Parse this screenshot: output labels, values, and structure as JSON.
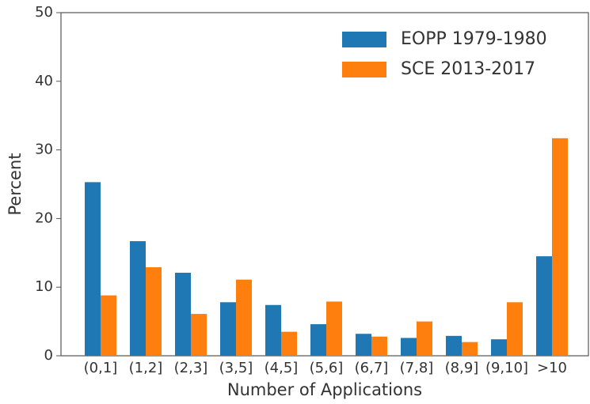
{
  "chart_data": {
    "type": "bar",
    "xlabel": "Number of Applications",
    "ylabel": "Percent",
    "categories": [
      "(0,1]",
      "(1,2]",
      "(2,3]",
      "(3,5]",
      "(4,5]",
      "(5,6]",
      "(6,7]",
      "(7,8]",
      "(8,9]",
      "(9,10]",
      ">10"
    ],
    "series": [
      {
        "name": "EOPP 1979-1980",
        "color": "#1f77b4",
        "values": [
          25.3,
          16.7,
          12.1,
          7.8,
          7.4,
          4.6,
          3.2,
          2.6,
          2.9,
          2.4,
          14.5
        ]
      },
      {
        "name": "SCE 2013-2017",
        "color": "#ff7f0e",
        "values": [
          8.8,
          12.9,
          6.1,
          11.1,
          3.5,
          7.9,
          2.8,
          5.0,
          2.0,
          7.8,
          31.7
        ]
      }
    ],
    "ylim": [
      0,
      50
    ],
    "yticks": [
      0,
      10,
      20,
      30,
      40,
      50
    ],
    "legend": "upper right"
  }
}
